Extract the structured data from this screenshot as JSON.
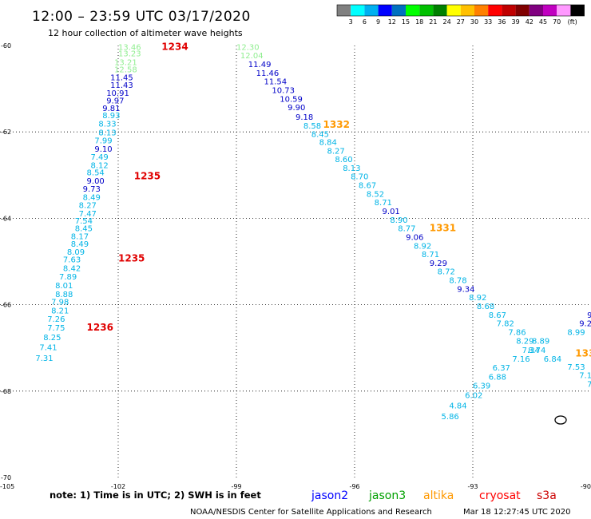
{
  "header": {
    "title": "12:00 – 23:59 UTC 03/17/2020",
    "subtitle": "12 hour collection of altimeter wave heights"
  },
  "colorbar": {
    "colors": [
      "#808080",
      "#00ffff",
      "#00b0f0",
      "#0000ff",
      "#0070c0",
      "#00ff00",
      "#00c000",
      "#008000",
      "#ffff00",
      "#ffc000",
      "#ff8000",
      "#ff0000",
      "#c00000",
      "#800000",
      "#800080",
      "#c000c0",
      "#ff99ff",
      "#000000"
    ],
    "labels": [
      "3",
      "6",
      "9",
      "12",
      "15",
      "18",
      "21",
      "24",
      "27",
      "30",
      "33",
      "36",
      "39",
      "42",
      "45",
      "70"
    ],
    "unit": "(ft)"
  },
  "colors": {
    "v1": "#90ee90",
    "v2": "#00b4e6",
    "v3": "#0000c8",
    "red": "#e00000",
    "orange": "#ff9900",
    "jason2": "#0000ff",
    "jason3": "#00a000",
    "altika": "#ff9900",
    "cryosat": "#ff0000",
    "s3a": "#cc0000"
  },
  "map": {
    "x_ticks": [
      "-105",
      "-102",
      "-99",
      "-96",
      "-93",
      "-90"
    ],
    "y_ticks": [
      "-60",
      "-62",
      "-64",
      "-66",
      "-68",
      "-70"
    ]
  },
  "tracks": [
    {
      "name": "track-left",
      "times": [
        {
          "v": "1234",
          "lon": -100.9,
          "lat": -60.1
        },
        {
          "v": "1235",
          "lon": -101.6,
          "lat": -63.1
        },
        {
          "v": "1235",
          "lon": -102.0,
          "lat": -65.0
        },
        {
          "v": "1236",
          "lon": -102.8,
          "lat": -66.6
        }
      ],
      "obs": [
        {
          "v": "13.46",
          "lon": -102.0,
          "lat": -60.1,
          "c": "v1"
        },
        {
          "v": "13.23",
          "lon": -102.0,
          "lat": -60.25,
          "c": "v1"
        },
        {
          "v": "13.21",
          "lon": -102.1,
          "lat": -60.45,
          "c": "v1"
        },
        {
          "v": "12.58",
          "lon": -102.1,
          "lat": -60.62,
          "c": "v1"
        },
        {
          "v": "11.45",
          "lon": -102.2,
          "lat": -60.8,
          "c": "v3"
        },
        {
          "v": "11.43",
          "lon": -102.2,
          "lat": -60.98,
          "c": "v3"
        },
        {
          "v": "10.91",
          "lon": -102.3,
          "lat": -61.16,
          "c": "v3"
        },
        {
          "v": "9.97",
          "lon": -102.3,
          "lat": -61.34,
          "c": "v3"
        },
        {
          "v": "9.81",
          "lon": -102.4,
          "lat": -61.52,
          "c": "v3"
        },
        {
          "v": "8.93",
          "lon": -102.4,
          "lat": -61.68,
          "c": "v2"
        },
        {
          "v": "8.33",
          "lon": -102.5,
          "lat": -61.88,
          "c": "v2"
        },
        {
          "v": "8.13",
          "lon": -102.5,
          "lat": -62.08,
          "c": "v2"
        },
        {
          "v": "7.99",
          "lon": -102.6,
          "lat": -62.26,
          "c": "v2"
        },
        {
          "v": "9.10",
          "lon": -102.6,
          "lat": -62.46,
          "c": "v3"
        },
        {
          "v": "7.49",
          "lon": -102.7,
          "lat": -62.64,
          "c": "v2"
        },
        {
          "v": "8.12",
          "lon": -102.7,
          "lat": -62.84,
          "c": "v2"
        },
        {
          "v": "8.54",
          "lon": -102.8,
          "lat": -63.0,
          "c": "v2"
        },
        {
          "v": "9.00",
          "lon": -102.8,
          "lat": -63.2,
          "c": "v3"
        },
        {
          "v": "9.73",
          "lon": -102.9,
          "lat": -63.38,
          "c": "v3"
        },
        {
          "v": "8.49",
          "lon": -102.9,
          "lat": -63.58,
          "c": "v2"
        },
        {
          "v": "8.27",
          "lon": -103.0,
          "lat": -63.76,
          "c": "v2"
        },
        {
          "v": "7.47",
          "lon": -103.0,
          "lat": -63.96,
          "c": "v2"
        },
        {
          "v": "7.54",
          "lon": -103.1,
          "lat": -64.12,
          "c": "v2"
        },
        {
          "v": "8.45",
          "lon": -103.1,
          "lat": -64.3,
          "c": "v2"
        },
        {
          "v": "8.17",
          "lon": -103.2,
          "lat": -64.48,
          "c": "v2"
        },
        {
          "v": "8.49",
          "lon": -103.2,
          "lat": -64.66,
          "c": "v2"
        },
        {
          "v": "8.09",
          "lon": -103.3,
          "lat": -64.84,
          "c": "v2"
        },
        {
          "v": "7.63",
          "lon": -103.4,
          "lat": -65.02,
          "c": "v2"
        },
        {
          "v": "8.42",
          "lon": -103.4,
          "lat": -65.22,
          "c": "v2"
        },
        {
          "v": "7.89",
          "lon": -103.5,
          "lat": -65.42,
          "c": "v2"
        },
        {
          "v": "8.01",
          "lon": -103.6,
          "lat": -65.62,
          "c": "v2"
        },
        {
          "v": "8.88",
          "lon": -103.6,
          "lat": -65.82,
          "c": "v2"
        },
        {
          "v": "7.98",
          "lon": -103.7,
          "lat": -66.0,
          "c": "v2"
        },
        {
          "v": "8.21",
          "lon": -103.7,
          "lat": -66.2,
          "c": "v2"
        },
        {
          "v": "7.26",
          "lon": -103.8,
          "lat": -66.4,
          "c": "v2"
        },
        {
          "v": "7.75",
          "lon": -103.8,
          "lat": -66.6,
          "c": "v2"
        },
        {
          "v": "8.25",
          "lon": -103.9,
          "lat": -66.82,
          "c": "v2"
        },
        {
          "v": "7.41",
          "lon": -104.0,
          "lat": -67.05,
          "c": "v2"
        },
        {
          "v": "7.31",
          "lon": -104.1,
          "lat": -67.3,
          "c": "v2"
        }
      ]
    },
    {
      "name": "track-middle",
      "times": [
        {
          "v": "1332",
          "lon": -96.8,
          "lat": -61.9
        }
      ],
      "obs": [
        {
          "v": "12.30",
          "lon": -99.0,
          "lat": -60.1,
          "c": "v1"
        },
        {
          "v": "12.04",
          "lon": -98.9,
          "lat": -60.3,
          "c": "v1"
        },
        {
          "v": "11.49",
          "lon": -98.7,
          "lat": -60.5,
          "c": "v3"
        },
        {
          "v": "11.46",
          "lon": -98.5,
          "lat": -60.7,
          "c": "v3"
        },
        {
          "v": "11.54",
          "lon": -98.3,
          "lat": -60.9,
          "c": "v3"
        },
        {
          "v": "10.73",
          "lon": -98.1,
          "lat": -61.1,
          "c": "v3"
        },
        {
          "v": "10.59",
          "lon": -97.9,
          "lat": -61.3,
          "c": "v3"
        },
        {
          "v": "9.90",
          "lon": -97.7,
          "lat": -61.5,
          "c": "v3"
        },
        {
          "v": "9.18",
          "lon": -97.5,
          "lat": -61.72,
          "c": "v3"
        },
        {
          "v": "8.58",
          "lon": -97.3,
          "lat": -61.92,
          "c": "v2"
        },
        {
          "v": "8.45",
          "lon": -97.1,
          "lat": -62.12,
          "c": "v2"
        },
        {
          "v": "8.84",
          "lon": -96.9,
          "lat": -62.3,
          "c": "v2"
        },
        {
          "v": "8.27",
          "lon": -96.7,
          "lat": -62.5,
          "c": "v2"
        },
        {
          "v": "8.60",
          "lon": -96.5,
          "lat": -62.7,
          "c": "v2"
        },
        {
          "v": "8.13",
          "lon": -96.3,
          "lat": -62.9,
          "c": "v2"
        },
        {
          "v": "8.70",
          "lon": -96.1,
          "lat": -63.1,
          "c": "v2"
        },
        {
          "v": "8.67",
          "lon": -95.9,
          "lat": -63.3,
          "c": "v2"
        },
        {
          "v": "8.52",
          "lon": -95.7,
          "lat": -63.5,
          "c": "v2"
        },
        {
          "v": "8.71",
          "lon": -95.5,
          "lat": -63.7,
          "c": "v2"
        },
        {
          "v": "9.01",
          "lon": -95.3,
          "lat": -63.9,
          "c": "v3"
        },
        {
          "v": "8.90",
          "lon": -95.1,
          "lat": -64.1,
          "c": "v2"
        },
        {
          "v": "8.77",
          "lon": -94.9,
          "lat": -64.3,
          "c": "v2"
        },
        {
          "v": "9.06",
          "lon": -94.7,
          "lat": -64.5,
          "c": "v3"
        },
        {
          "v": "8.92",
          "lon": -94.5,
          "lat": -64.7,
          "c": "v2"
        },
        {
          "v": "8.71",
          "lon": -94.3,
          "lat": -64.9,
          "c": "v2"
        },
        {
          "v": "9.29",
          "lon": -94.1,
          "lat": -65.1,
          "c": "v3"
        },
        {
          "v": "8.72",
          "lon": -93.9,
          "lat": -65.3,
          "c": "v2"
        },
        {
          "v": "8.78",
          "lon": -93.6,
          "lat": -65.5,
          "c": "v2"
        },
        {
          "v": "9.34",
          "lon": -93.4,
          "lat": -65.7,
          "c": "v3"
        },
        {
          "v": "8.92",
          "lon": -93.1,
          "lat": -65.9,
          "c": "v2"
        },
        {
          "v": "8.68",
          "lon": -92.9,
          "lat": -66.1,
          "c": "v2"
        },
        {
          "v": "8.67",
          "lon": -92.6,
          "lat": -66.3,
          "c": "v2"
        },
        {
          "v": "7.82",
          "lon": -92.4,
          "lat": -66.5,
          "c": "v2"
        },
        {
          "v": "7.86",
          "lon": -92.1,
          "lat": -66.7,
          "c": "v2"
        },
        {
          "v": "8.29",
          "lon": -91.9,
          "lat": -66.9,
          "c": "v2"
        },
        {
          "v": "8.89",
          "lon": -91.5,
          "lat": -66.9,
          "c": "v2"
        },
        {
          "v": "8.74",
          "lon": -91.6,
          "lat": -67.12,
          "c": "v2"
        },
        {
          "v": "7.34",
          "lon": -91.75,
          "lat": -67.12,
          "c": "v2"
        },
        {
          "v": "7.16",
          "lon": -92.0,
          "lat": -67.32,
          "c": "v2"
        },
        {
          "v": "6.84",
          "lon": -91.2,
          "lat": -67.32,
          "c": "v2"
        },
        {
          "v": "6.37",
          "lon": -92.5,
          "lat": -67.52,
          "c": "v2"
        },
        {
          "v": "6.88",
          "lon": -92.6,
          "lat": -67.74,
          "c": "v2"
        },
        {
          "v": "6.39",
          "lon": -93.0,
          "lat": -67.94,
          "c": "v2"
        },
        {
          "v": "6.02",
          "lon": -93.2,
          "lat": -68.16,
          "c": "v2"
        },
        {
          "v": "4.84",
          "lon": -93.6,
          "lat": -68.4,
          "c": "v2"
        },
        {
          "v": "5.86",
          "lon": -93.8,
          "lat": -68.65,
          "c": "v2"
        }
      ]
    },
    {
      "name": "track-right",
      "times": [
        {
          "v": "1331",
          "lon": -94.1,
          "lat": -64.3
        },
        {
          "v": "1330",
          "lon": -90.4,
          "lat": -67.2
        }
      ],
      "obs": [
        {
          "v": "8.99",
          "lon": -90.6,
          "lat": -66.7,
          "c": "v2"
        },
        {
          "v": "9.24",
          "lon": -90.3,
          "lat": -66.5,
          "c": "v3"
        },
        {
          "v": "9.0",
          "lon": -90.1,
          "lat": -66.3,
          "c": "v3"
        },
        {
          "v": "9",
          "lon": -89.95,
          "lat": -66.1,
          "c": "v3"
        },
        {
          "v": "7.53",
          "lon": -90.6,
          "lat": -67.5,
          "c": "v2"
        },
        {
          "v": "7.1",
          "lon": -90.3,
          "lat": -67.7,
          "c": "v2"
        },
        {
          "v": "7",
          "lon": -90.1,
          "lat": -67.9,
          "c": "v2"
        }
      ]
    }
  ],
  "footer": {
    "note": "note: 1) Time is in UTC; 2) SWH is in feet",
    "satellites": [
      "jason2",
      "jason3",
      "altika",
      "cryosat",
      "s3a"
    ],
    "credit": "NOAA/NESDIS Center for Satellite Applications and Research",
    "timestamp": "Mar 18 12:27:45 UTC 2020"
  }
}
